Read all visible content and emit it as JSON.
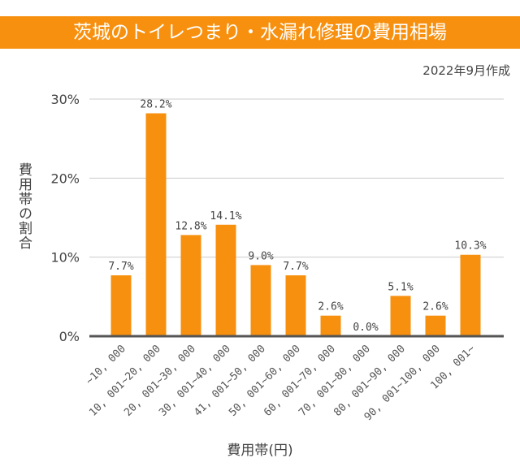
{
  "chart_data": {
    "type": "bar",
    "title": "茨城のトイレつまり・水漏れ修理の費用相場",
    "subtitle": "2022年9月作成",
    "xlabel": "費用帯(円)",
    "ylabel": "費用帯の割合",
    "categories": [
      "~10,000",
      "10,001~20,000",
      "20,001~30,000",
      "30,001~40,000",
      "41,001~50,000",
      "50,001~60,000",
      "60,001~70,000",
      "70,001~80,000",
      "80,001~90,000",
      "90,001~100,000",
      "100,001~"
    ],
    "values": [
      7.7,
      28.2,
      12.8,
      14.1,
      9.0,
      7.7,
      2.6,
      0.0,
      5.1,
      2.6,
      10.3
    ],
    "data_labels": [
      "7.7%",
      "28.2%",
      "12.8%",
      "14.1%",
      "9.0%",
      "7.7%",
      "2.6%",
      "0.0%",
      "5.1%",
      "2.6%",
      "10.3%"
    ],
    "yticks": [
      "0%",
      "10%",
      "20%",
      "30%"
    ],
    "ylim": [
      0,
      30
    ],
    "grid": true,
    "colors": {
      "bar": "#f7900f",
      "title_bg": "#f7900f",
      "axis": "#555555",
      "grid": "#cccccc"
    }
  }
}
